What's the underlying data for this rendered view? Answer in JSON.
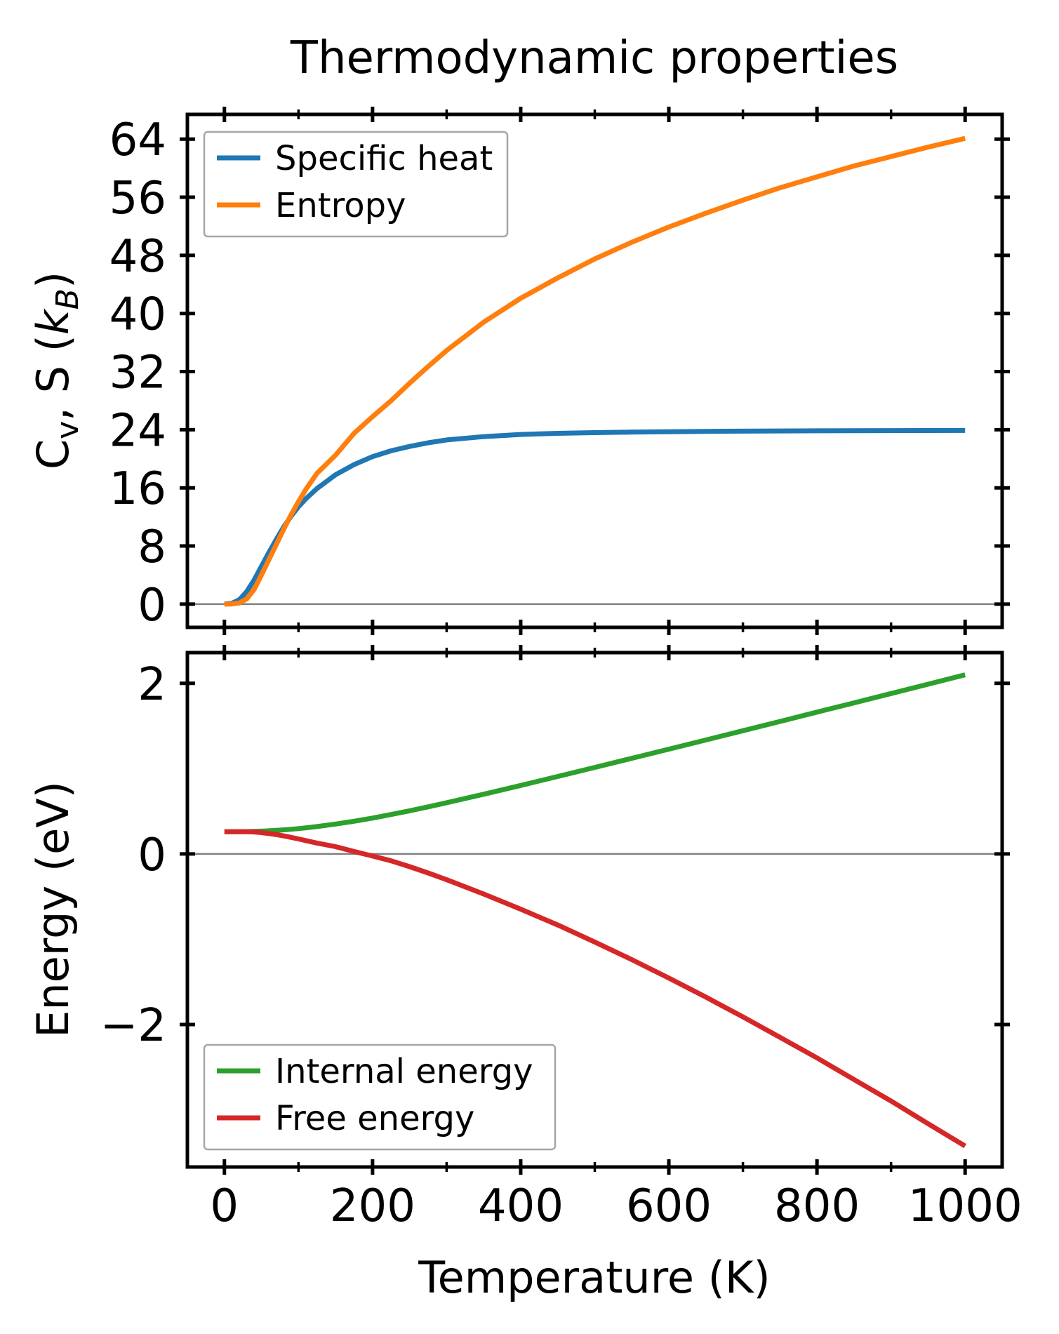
{
  "figure": {
    "title": "Thermodynamic properties"
  },
  "colors": {
    "specific_heat": "#1f77b4",
    "entropy": "#ff7f0e",
    "internal_energy": "#2ca02c",
    "free_energy": "#d62728",
    "zero_line": "#808080",
    "legend_edge": "#a6a6a6",
    "axis": "#000000"
  },
  "top_panel": {
    "ylabel_parts": {
      "c": "C",
      "c_sub": "v",
      "mid": ", S (",
      "k": "k",
      "k_sub": "B",
      "close": ")"
    }
  },
  "bottom_panel": {
    "ylabel": "Energy (eV)",
    "xlabel": "Temperature (K)"
  },
  "chart_data": [
    {
      "type": "line",
      "title": "Thermodynamic properties",
      "xlabel": "",
      "ylabel": "C_v, S (k_B)",
      "xlim": [
        -50,
        1050
      ],
      "ylim": [
        -3.2,
        67.4
      ],
      "xticks": [
        0,
        200,
        400,
        600,
        800,
        1000
      ],
      "xminorticks": [
        100,
        300,
        500,
        700,
        900
      ],
      "yticks": [
        0,
        8,
        16,
        24,
        32,
        40,
        48,
        56,
        64
      ],
      "x_tick_labels_shown": false,
      "grid": false,
      "zero_line": 0,
      "legend_loc": "upper left",
      "x": [
        0,
        10,
        20,
        30,
        40,
        50,
        60,
        70,
        80,
        90,
        100,
        110,
        125,
        150,
        175,
        200,
        225,
        250,
        275,
        300,
        350,
        400,
        450,
        500,
        550,
        600,
        650,
        700,
        750,
        800,
        850,
        900,
        950,
        1000
      ],
      "series": [
        {
          "name": "Specific heat",
          "color": "#1f77b4",
          "values": [
            0,
            0.1,
            0.6,
            1.7,
            3.3,
            5.2,
            7.1,
            8.9,
            10.6,
            12.1,
            13.4,
            14.5,
            15.9,
            17.8,
            19.2,
            20.3,
            21.1,
            21.7,
            22.2,
            22.6,
            23.05,
            23.35,
            23.5,
            23.6,
            23.67,
            23.72,
            23.77,
            23.8,
            23.83,
            23.85,
            23.87,
            23.88,
            23.89,
            23.9
          ]
        },
        {
          "name": "Entropy",
          "color": "#ff7f0e",
          "values": [
            0,
            0.02,
            0.15,
            0.7,
            2,
            4,
            6.1,
            8.2,
            10.3,
            12.3,
            14.1,
            15.8,
            18,
            20.5,
            23.5,
            25.8,
            28,
            30.4,
            32.7,
            34.9,
            38.8,
            42.1,
            44.9,
            47.5,
            49.8,
            51.9,
            53.8,
            55.6,
            57.3,
            58.8,
            60.3,
            61.6,
            62.9,
            64.1
          ]
        }
      ]
    },
    {
      "type": "line",
      "title": "",
      "xlabel": "Temperature (K)",
      "ylabel": "Energy (eV)",
      "xlim": [
        -50,
        1050
      ],
      "ylim": [
        -3.67,
        2.36
      ],
      "xticks": [
        0,
        200,
        400,
        600,
        800,
        1000
      ],
      "xminorticks": [
        100,
        300,
        500,
        700,
        900
      ],
      "yticks": [
        -2,
        0,
        2
      ],
      "x_tick_labels_shown": true,
      "grid": false,
      "zero_line": 0,
      "legend_loc": "lower left",
      "x": [
        0,
        10,
        20,
        30,
        40,
        50,
        60,
        70,
        80,
        90,
        100,
        110,
        125,
        150,
        175,
        200,
        225,
        250,
        275,
        300,
        350,
        400,
        450,
        500,
        550,
        600,
        650,
        700,
        750,
        800,
        850,
        900,
        950,
        1000
      ],
      "series": [
        {
          "name": "Internal energy",
          "color": "#2ca02c",
          "values": [
            0.26,
            0.26,
            0.261,
            0.262,
            0.264,
            0.267,
            0.271,
            0.276,
            0.282,
            0.289,
            0.297,
            0.306,
            0.321,
            0.35,
            0.383,
            0.42,
            0.462,
            0.506,
            0.552,
            0.6,
            0.7,
            0.803,
            0.908,
            1.014,
            1.121,
            1.228,
            1.336,
            1.444,
            1.553,
            1.662,
            1.771,
            1.88,
            1.99,
            2.1
          ]
        },
        {
          "name": "Free energy",
          "color": "#d62728",
          "values": [
            0.26,
            0.26,
            0.261,
            0.26,
            0.257,
            0.25,
            0.239,
            0.227,
            0.211,
            0.194,
            0.176,
            0.156,
            0.127,
            0.085,
            0.029,
            -0.025,
            -0.081,
            -0.149,
            -0.223,
            -0.302,
            -0.47,
            -0.648,
            -0.833,
            -1.033,
            -1.239,
            -1.455,
            -1.678,
            -1.91,
            -2.15,
            -2.391,
            -2.645,
            -2.897,
            -3.163,
            -3.424
          ]
        }
      ]
    }
  ]
}
